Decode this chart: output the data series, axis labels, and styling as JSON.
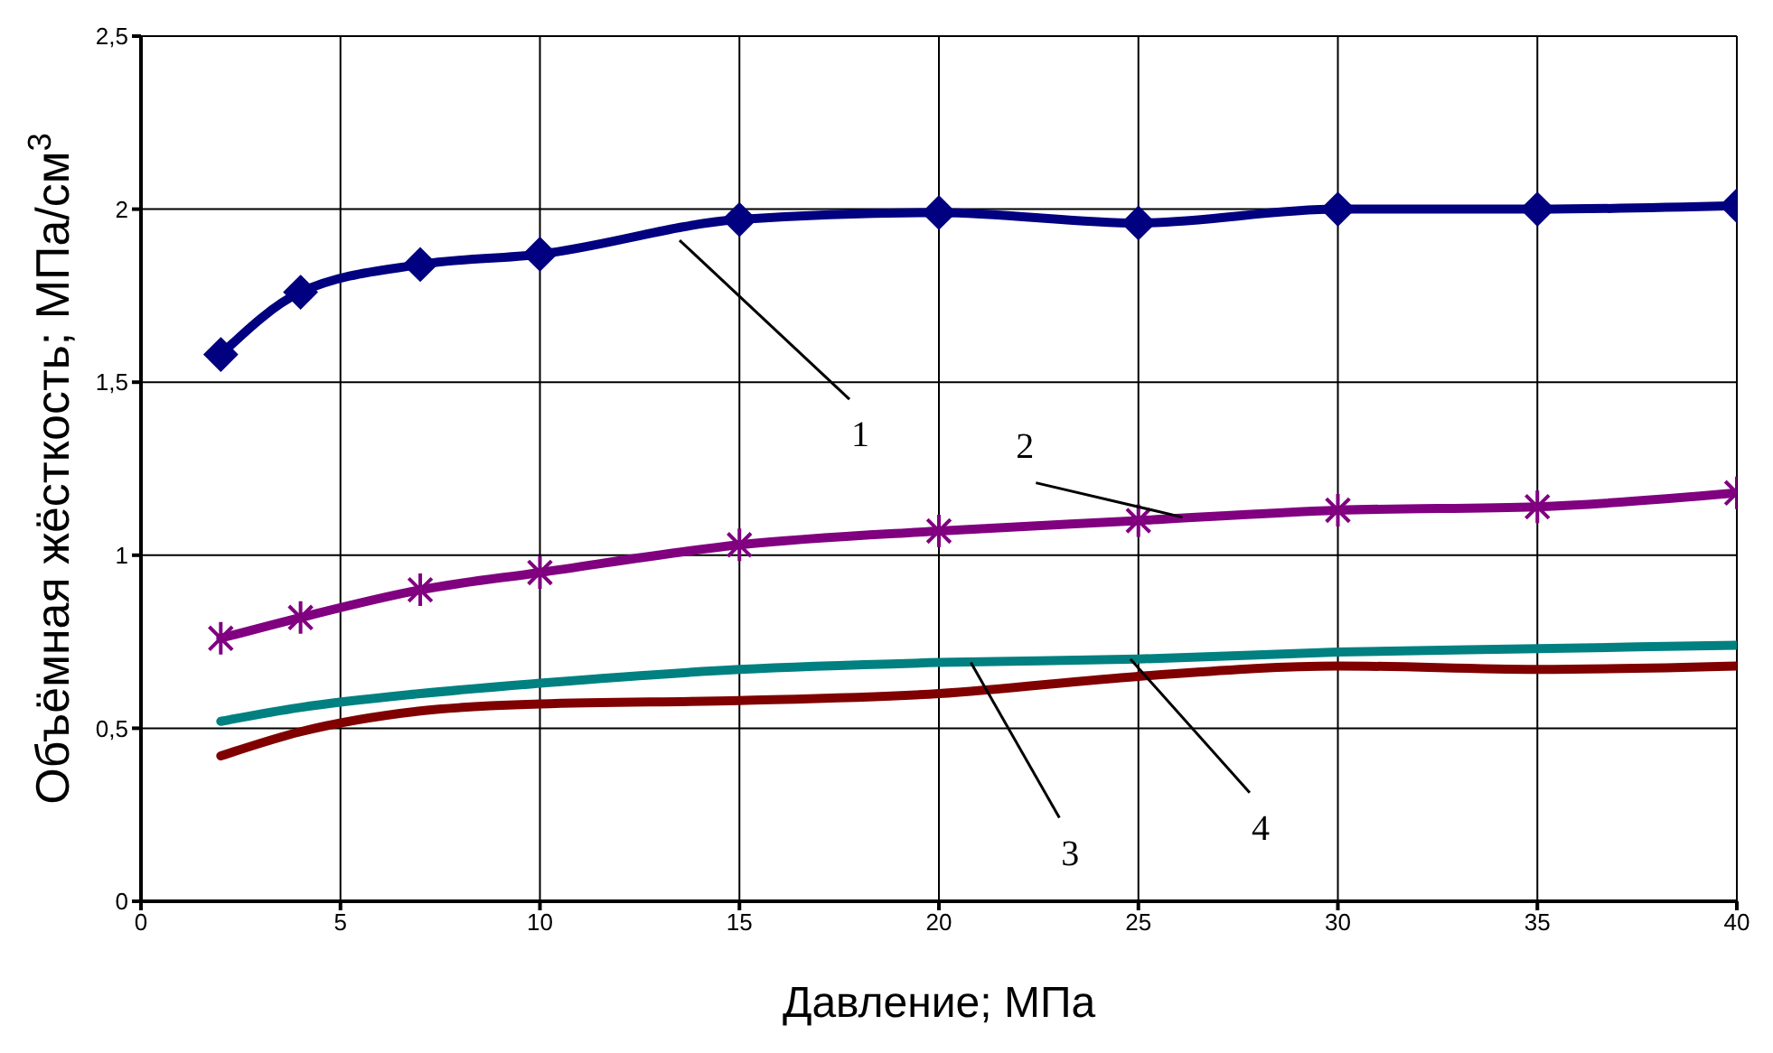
{
  "chart_data": {
    "type": "line",
    "xlabel": "Давление; МПа",
    "ylabel": "Объёмная жёсткость; МПа/см$^{3}$",
    "x": [
      2,
      4,
      7,
      10,
      15,
      20,
      25,
      30,
      35,
      40
    ],
    "series": [
      {
        "color": "#000080",
        "marker": "diamond",
        "values": [
          1.58,
          1.76,
          1.84,
          1.87,
          1.97,
          1.99,
          1.96,
          2.0,
          2.0,
          2.01
        ]
      },
      {
        "color": "#800080",
        "marker": "cross",
        "values": [
          0.76,
          0.82,
          0.9,
          0.95,
          1.03,
          1.07,
          1.1,
          1.13,
          1.14,
          1.18
        ]
      },
      {
        "color": "#008080",
        "marker": "none",
        "values": [
          0.52,
          0.56,
          0.6,
          0.63,
          0.67,
          0.69,
          0.7,
          0.72,
          0.73,
          0.74
        ]
      },
      {
        "color": "#800000",
        "marker": "none",
        "values": [
          0.42,
          0.49,
          0.55,
          0.57,
          0.58,
          0.6,
          0.65,
          0.68,
          0.67,
          0.68
        ]
      }
    ],
    "xlim": [
      0,
      40
    ],
    "xticks": [
      0,
      5,
      10,
      15,
      20,
      25,
      30,
      35,
      40
    ],
    "ylim": [
      0,
      2.5
    ],
    "yticks": [
      0,
      {
        "value": 0.5,
        "label": "0,5"
      },
      1,
      {
        "value": 1.5,
        "label": "1,5"
      },
      2,
      {
        "value": 2.5,
        "label": "2,5"
      }
    ],
    "grid": true,
    "line_style": "solid",
    "annotations": [
      {
        "text": "1",
        "x": 13.5,
        "y": 1.91
      },
      {
        "text": "2",
        "x": 26.1,
        "y": 1.11
      },
      {
        "text": "3",
        "x": 20.8,
        "y": 0.69
      },
      {
        "text": "4",
        "x": 24.8,
        "y": 0.7
      }
    ]
  }
}
